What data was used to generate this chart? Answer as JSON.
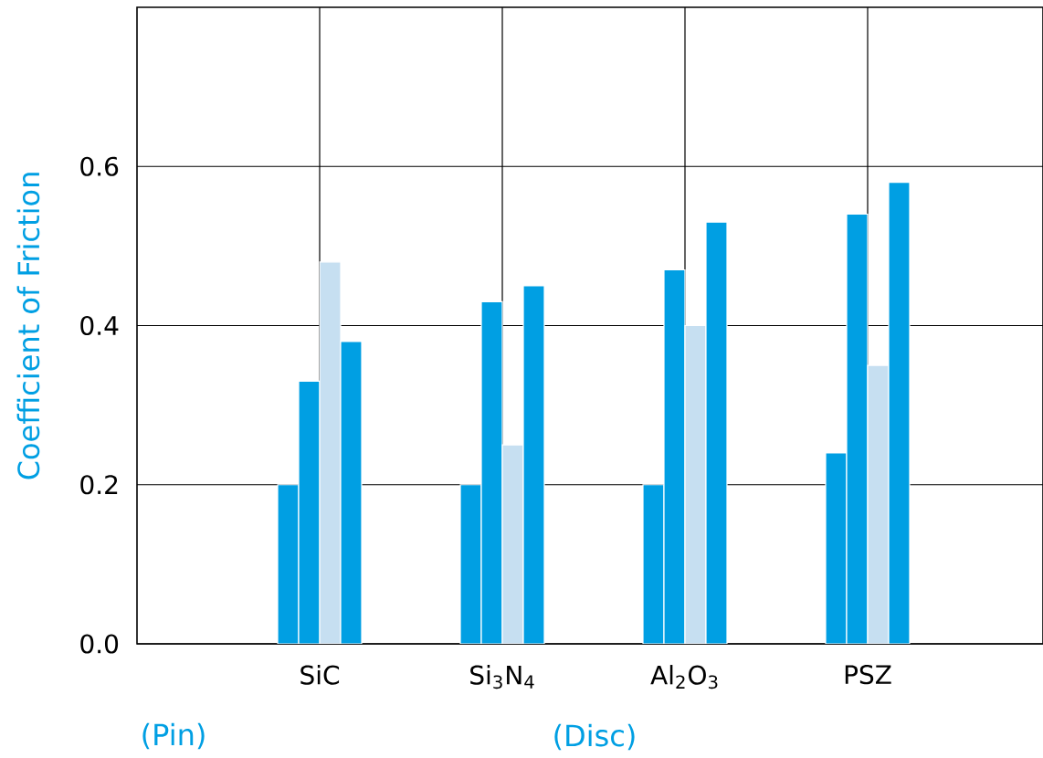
{
  "chart_data": {
    "type": "bar",
    "ylabel": "Coefficient of Friction",
    "xlabel": "(Disc)",
    "categories": [
      "SiC",
      "Si$_{3}$N$_{4}$",
      "Al$_{2}$O$_{3}$",
      "PSZ"
    ],
    "series": [
      {
        "color": "#009fe3",
        "values": [
          0.2,
          0.2,
          0.2,
          0.24
        ]
      },
      {
        "color": "#009fe3",
        "values": [
          0.33,
          0.43,
          0.47,
          0.54
        ]
      },
      {
        "color": "#c6dff1",
        "values": [
          0.48,
          0.25,
          0.4,
          0.35
        ]
      },
      {
        "color": "#009fe3",
        "values": [
          0.38,
          0.45,
          0.53,
          0.58
        ]
      }
    ],
    "ylim": [
      0,
      0.8
    ],
    "yticks": [
      {
        "value": 0,
        "label": "0.0"
      },
      {
        "value": 0.2,
        "label": "0.2"
      },
      {
        "value": 0.4,
        "label": "0.4"
      },
      {
        "value": 0.6,
        "label": "0.6"
      }
    ],
    "grid": true,
    "annotations": [
      "(Pin)"
    ]
  }
}
